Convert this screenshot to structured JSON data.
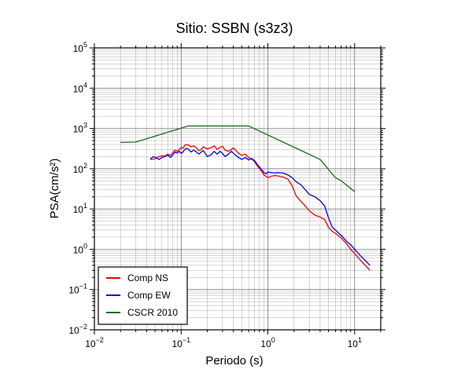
{
  "chart_data": {
    "type": "line",
    "title": "Sitio: SSBN (s3z3)",
    "xlabel": "Periodo (s)",
    "ylabel": "PSA(cm/s²)",
    "xscale": "log",
    "yscale": "log",
    "xlim": [
      0.01,
      20
    ],
    "ylim": [
      0.01,
      100000
    ],
    "grid": true,
    "legend_position": "bottom-left",
    "x_ticks": [
      {
        "base": "10",
        "exp": "−2",
        "value": 0.01
      },
      {
        "base": "10",
        "exp": "−1",
        "value": 0.1
      },
      {
        "base": "10",
        "exp": "0",
        "value": 1
      },
      {
        "base": "10",
        "exp": "1",
        "value": 10
      }
    ],
    "y_ticks": [
      {
        "base": "10",
        "exp": "−2",
        "value": 0.01
      },
      {
        "base": "10",
        "exp": "−1",
        "value": 0.1
      },
      {
        "base": "10",
        "exp": "0",
        "value": 1
      },
      {
        "base": "10",
        "exp": "1",
        "value": 10
      },
      {
        "base": "10",
        "exp": "2",
        "value": 100
      },
      {
        "base": "10",
        "exp": "3",
        "value": 1000
      },
      {
        "base": "10",
        "exp": "4",
        "value": 10000
      },
      {
        "base": "10",
        "exp": "5",
        "value": 100000
      }
    ],
    "series": [
      {
        "name": "Comp NS",
        "color": "#ff0000",
        "points": [
          [
            0.044,
            170
          ],
          [
            0.05,
            175
          ],
          [
            0.055,
            200
          ],
          [
            0.06,
            210
          ],
          [
            0.065,
            205
          ],
          [
            0.07,
            230
          ],
          [
            0.075,
            215
          ],
          [
            0.08,
            250
          ],
          [
            0.085,
            290
          ],
          [
            0.09,
            270
          ],
          [
            0.095,
            300
          ],
          [
            0.1,
            340
          ],
          [
            0.105,
            320
          ],
          [
            0.11,
            380
          ],
          [
            0.115,
            400
          ],
          [
            0.12,
            390
          ],
          [
            0.13,
            350
          ],
          [
            0.14,
            370
          ],
          [
            0.15,
            330
          ],
          [
            0.16,
            280
          ],
          [
            0.17,
            300
          ],
          [
            0.18,
            350
          ],
          [
            0.19,
            330
          ],
          [
            0.2,
            310
          ],
          [
            0.22,
            330
          ],
          [
            0.24,
            370
          ],
          [
            0.26,
            300
          ],
          [
            0.28,
            340
          ],
          [
            0.3,
            360
          ],
          [
            0.32,
            290
          ],
          [
            0.35,
            270
          ],
          [
            0.38,
            300
          ],
          [
            0.4,
            330
          ],
          [
            0.43,
            280
          ],
          [
            0.46,
            240
          ],
          [
            0.5,
            215
          ],
          [
            0.55,
            230
          ],
          [
            0.6,
            190
          ],
          [
            0.65,
            175
          ],
          [
            0.7,
            150
          ],
          [
            0.75,
            120
          ],
          [
            0.8,
            100
          ],
          [
            0.85,
            85
          ],
          [
            0.9,
            70
          ],
          [
            0.95,
            65
          ],
          [
            1.0,
            60
          ],
          [
            1.1,
            65
          ],
          [
            1.2,
            68
          ],
          [
            1.3,
            66
          ],
          [
            1.5,
            62
          ],
          [
            1.7,
            55
          ],
          [
            1.9,
            38
          ],
          [
            2.1,
            22
          ],
          [
            2.3,
            17
          ],
          [
            2.6,
            13
          ],
          [
            3.0,
            9
          ],
          [
            3.5,
            7
          ],
          [
            4.0,
            6.3
          ],
          [
            4.5,
            5.5
          ],
          [
            5.0,
            3.5
          ],
          [
            5.5,
            2.8
          ],
          [
            6.0,
            2.5
          ],
          [
            7.0,
            1.9
          ],
          [
            8.0,
            1.4
          ],
          [
            9.0,
            1.0
          ],
          [
            10.0,
            0.78
          ],
          [
            12.0,
            0.5
          ],
          [
            15.0,
            0.3
          ]
        ]
      },
      {
        "name": "Comp EW",
        "color": "#0000ff",
        "points": [
          [
            0.044,
            175
          ],
          [
            0.048,
            200
          ],
          [
            0.052,
            185
          ],
          [
            0.056,
            170
          ],
          [
            0.06,
            190
          ],
          [
            0.065,
            200
          ],
          [
            0.07,
            220
          ],
          [
            0.075,
            190
          ],
          [
            0.08,
            220
          ],
          [
            0.085,
            260
          ],
          [
            0.09,
            245
          ],
          [
            0.095,
            270
          ],
          [
            0.1,
            240
          ],
          [
            0.105,
            260
          ],
          [
            0.11,
            300
          ],
          [
            0.115,
            320
          ],
          [
            0.12,
            310
          ],
          [
            0.13,
            260
          ],
          [
            0.14,
            290
          ],
          [
            0.15,
            260
          ],
          [
            0.16,
            230
          ],
          [
            0.17,
            260
          ],
          [
            0.18,
            280
          ],
          [
            0.19,
            240
          ],
          [
            0.2,
            200
          ],
          [
            0.22,
            220
          ],
          [
            0.24,
            270
          ],
          [
            0.26,
            230
          ],
          [
            0.28,
            270
          ],
          [
            0.3,
            240
          ],
          [
            0.32,
            200
          ],
          [
            0.35,
            230
          ],
          [
            0.38,
            270
          ],
          [
            0.42,
            220
          ],
          [
            0.46,
            190
          ],
          [
            0.5,
            170
          ],
          [
            0.55,
            190
          ],
          [
            0.6,
            165
          ],
          [
            0.65,
            180
          ],
          [
            0.7,
            160
          ],
          [
            0.75,
            130
          ],
          [
            0.8,
            110
          ],
          [
            0.85,
            95
          ],
          [
            0.9,
            80
          ],
          [
            0.95,
            75
          ],
          [
            1.0,
            82
          ],
          [
            1.1,
            80
          ],
          [
            1.2,
            78
          ],
          [
            1.3,
            80
          ],
          [
            1.5,
            78
          ],
          [
            1.7,
            70
          ],
          [
            1.9,
            60
          ],
          [
            2.1,
            48
          ],
          [
            2.4,
            40
          ],
          [
            2.7,
            30
          ],
          [
            3.0,
            23
          ],
          [
            3.5,
            20
          ],
          [
            4.0,
            16
          ],
          [
            4.5,
            12
          ],
          [
            5.0,
            6
          ],
          [
            5.5,
            3.6
          ],
          [
            6.0,
            3.0
          ],
          [
            7.0,
            2.2
          ],
          [
            8.0,
            1.6
          ],
          [
            9.0,
            1.3
          ],
          [
            10.0,
            1.0
          ],
          [
            12.0,
            0.65
          ],
          [
            15.0,
            0.4
          ]
        ]
      },
      {
        "name": "CSCR 2010",
        "color": "#1a6b1a",
        "points": [
          [
            0.02,
            450
          ],
          [
            0.03,
            460
          ],
          [
            0.12,
            1150
          ],
          [
            0.6,
            1150
          ],
          [
            4.0,
            170
          ],
          [
            6.0,
            60
          ],
          [
            7.0,
            50
          ],
          [
            10.0,
            27
          ]
        ]
      }
    ]
  }
}
